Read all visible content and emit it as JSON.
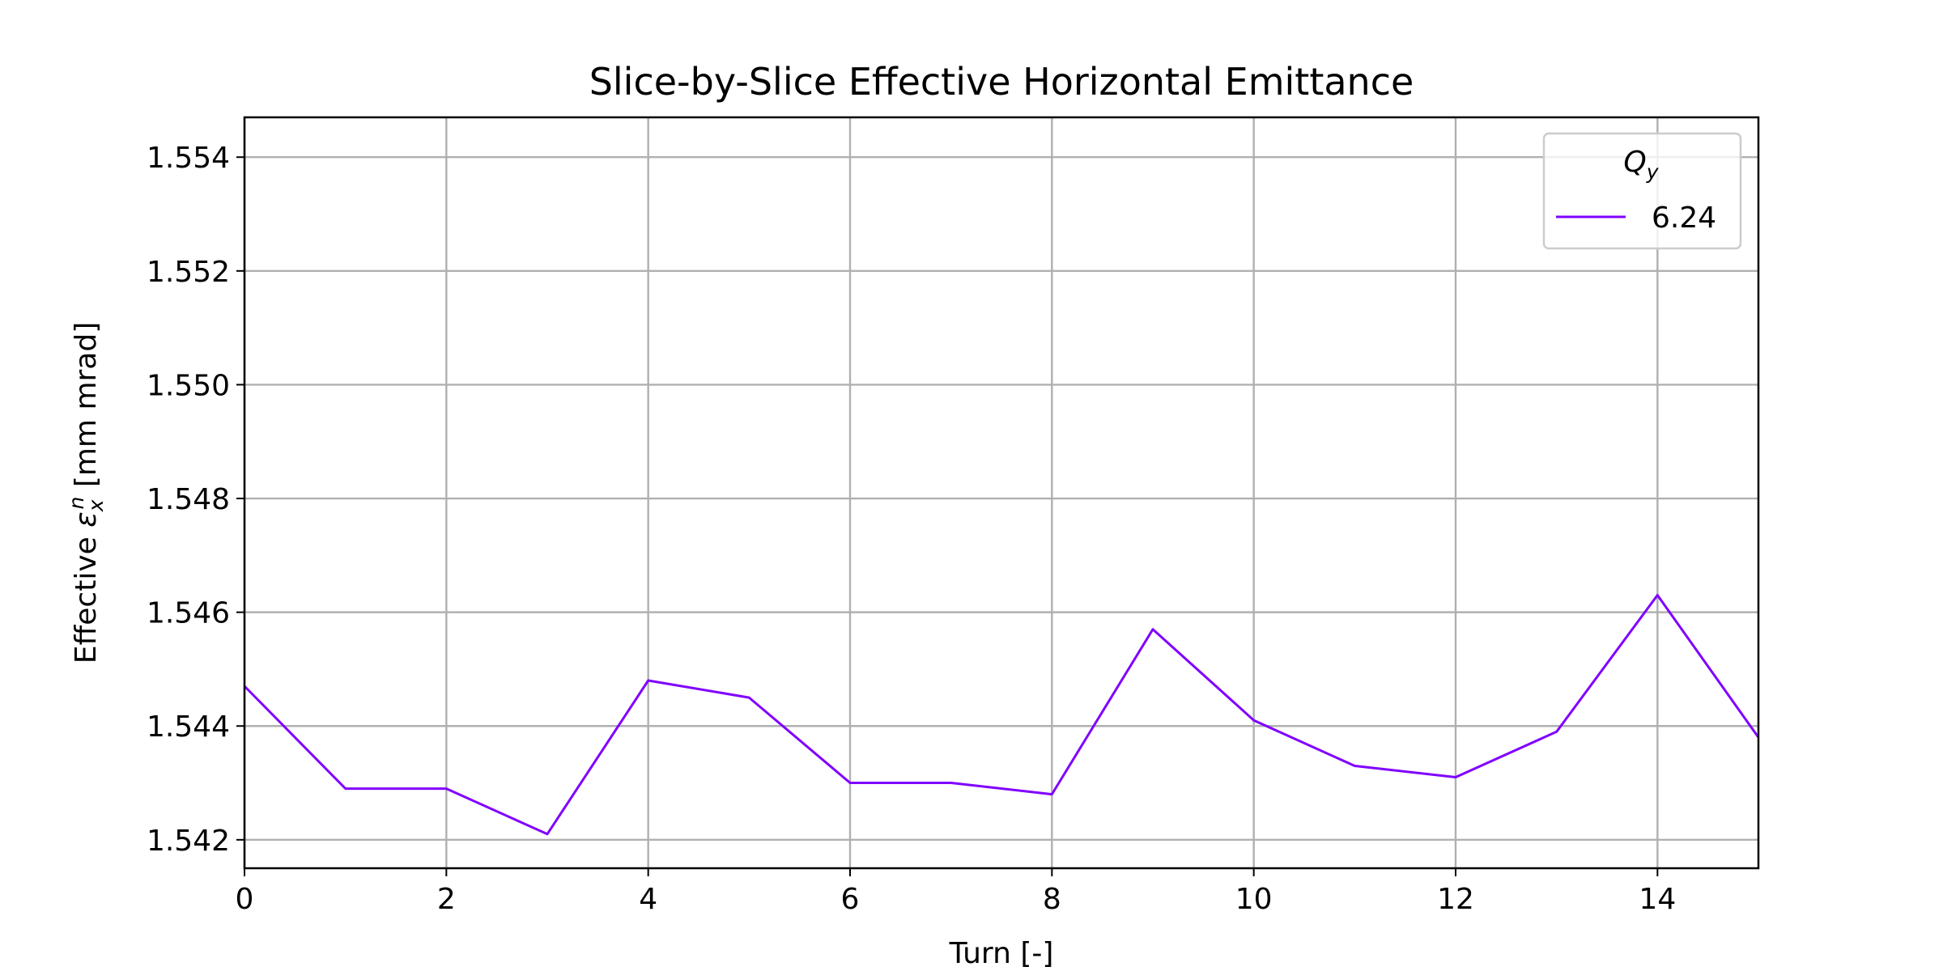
{
  "chart_data": {
    "type": "line",
    "title": "Slice-by-Slice Effective Horizontal Emittance",
    "xlabel": "Turn [-]",
    "ylabel": {
      "prefix": "Effective ",
      "symbol": "ε",
      "subscript": "x",
      "superscript": "n",
      "suffix": " [mm mrad]"
    },
    "xlim": [
      0,
      15
    ],
    "ylim": [
      1.5415,
      1.5547
    ],
    "xticks": [
      0,
      2,
      4,
      6,
      8,
      10,
      12,
      14
    ],
    "yticks": [
      1.542,
      1.544,
      1.546,
      1.548,
      1.55,
      1.552,
      1.554
    ],
    "ytick_labels": [
      "1.542",
      "1.544",
      "1.546",
      "1.548",
      "1.550",
      "1.552",
      "1.554"
    ],
    "grid": true,
    "legend": {
      "placement": "top-right",
      "title_symbol": "Q",
      "title_subscript": "y"
    },
    "series": [
      {
        "name": "6.24",
        "color": "#8000ff",
        "x": [
          0,
          1,
          2,
          3,
          4,
          5,
          6,
          7,
          8,
          9,
          10,
          11,
          12,
          13,
          14,
          15
        ],
        "values": [
          1.5447,
          1.5429,
          1.5429,
          1.5421,
          1.5448,
          1.5445,
          1.543,
          1.543,
          1.5428,
          1.5457,
          1.5441,
          1.5433,
          1.5431,
          1.5439,
          1.5463,
          1.5438
        ]
      }
    ]
  }
}
